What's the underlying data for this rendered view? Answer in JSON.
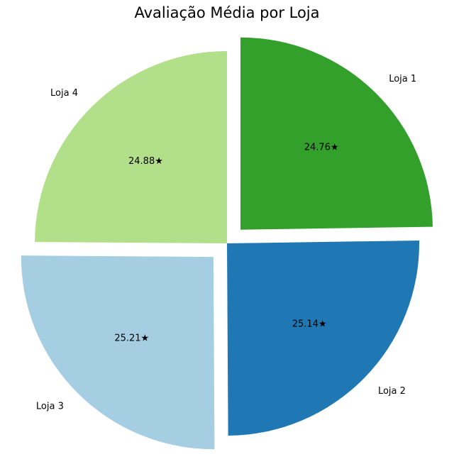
{
  "chart_data": {
    "type": "pie",
    "title": "Avaliação Média por Loja",
    "categories": [
      "Loja 1",
      "Loja 2",
      "Loja 3",
      "Loja 4"
    ],
    "values": [
      24.76,
      25.14,
      25.21,
      24.88
    ],
    "value_labels": [
      "24.76★",
      "25.14★",
      "25.21★",
      "24.88★"
    ],
    "colors": [
      "#33a02c",
      "#1f78b4",
      "#a6cee3",
      "#b2df8a"
    ],
    "exploded": [
      true,
      false,
      true,
      false
    ],
    "legend": "none",
    "grid": false
  }
}
